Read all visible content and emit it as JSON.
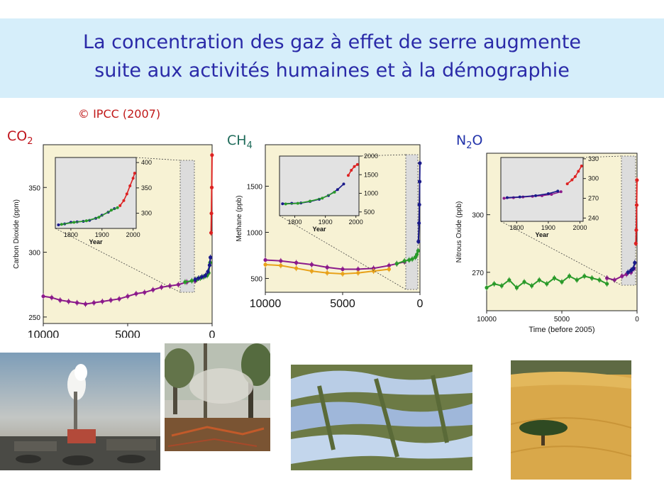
{
  "header": {
    "title_line1": "La concentration des gaz à effet de serre augmente",
    "title_line2": "suite aux activités humaines et à la démographie"
  },
  "credit": "© IPCC (2007)",
  "gas_labels": [
    {
      "main": "CO",
      "sub": "2",
      "tail": "",
      "color": "#c0161e"
    },
    {
      "main": "CH",
      "sub": "4",
      "tail": "",
      "color": "#1f6b5a"
    },
    {
      "main": "N",
      "sub": "2",
      "tail": "O",
      "color": "#2233aa"
    }
  ],
  "chart_data": [
    {
      "type": "scatter",
      "gas": "CO2",
      "ylabel": "Carbon Dioxide (ppm)",
      "xlabel": "",
      "xlim": [
        10000,
        0
      ],
      "ylim": [
        245,
        383
      ],
      "xticks": [
        10000,
        5000,
        0
      ],
      "yticks": [
        250,
        300,
        350
      ],
      "grid": false,
      "series": [
        {
          "color": "#8b1a8b",
          "points": [
            [
              10000,
              266
            ],
            [
              9500,
              265
            ],
            [
              9000,
              263
            ],
            [
              8500,
              262
            ],
            [
              8000,
              261
            ],
            [
              7500,
              260
            ],
            [
              7000,
              261
            ],
            [
              6500,
              262
            ],
            [
              6000,
              263
            ],
            [
              5500,
              264
            ],
            [
              5000,
              266
            ],
            [
              4500,
              268
            ],
            [
              4000,
              269
            ],
            [
              3500,
              271
            ],
            [
              3000,
              273
            ],
            [
              2500,
              274
            ],
            [
              2000,
              275
            ],
            [
              1500,
              277
            ],
            [
              1000,
              278
            ]
          ]
        },
        {
          "color": "#2a9a2a",
          "points": [
            [
              1600,
              277
            ],
            [
              1200,
              278
            ],
            [
              900,
              279
            ],
            [
              700,
              280
            ],
            [
              500,
              281
            ],
            [
              300,
              282
            ],
            [
              200,
              284
            ],
            [
              120,
              292
            ]
          ]
        },
        {
          "color": "#1a1a8a",
          "points": [
            [
              1000,
              279
            ],
            [
              800,
              280
            ],
            [
              600,
              281
            ],
            [
              400,
              282
            ],
            [
              250,
              285
            ],
            [
              150,
              290
            ],
            [
              100,
              296
            ]
          ]
        },
        {
          "color": "#dd2222",
          "points": [
            [
              60,
              315
            ],
            [
              40,
              330
            ],
            [
              20,
              350
            ],
            [
              5,
              375
            ]
          ]
        }
      ],
      "inset": {
        "xlim": [
          1750,
          2010
        ],
        "ylim": [
          270,
          410
        ],
        "xticks": [
          1800,
          1900,
          2000
        ],
        "yticks": [
          300,
          350,
          400
        ],
        "xlabel": "Year",
        "series": [
          {
            "color": "#1a1a8a",
            "points": [
              [
                1760,
                277
              ],
              [
                1780,
                279
              ],
              [
                1800,
                282
              ],
              [
                1820,
                283
              ],
              [
                1840,
                284
              ],
              [
                1860,
                286
              ],
              [
                1880,
                290
              ],
              [
                1900,
                296
              ],
              [
                1920,
                302
              ],
              [
                1940,
                309
              ]
            ]
          },
          {
            "color": "#2a9a2a",
            "points": [
              [
                1770,
                278
              ],
              [
                1810,
                282
              ],
              [
                1850,
                285
              ],
              [
                1890,
                292
              ],
              [
                1930,
                306
              ],
              [
                1950,
                311
              ]
            ]
          },
          {
            "color": "#dd2222",
            "points": [
              [
                1958,
                315
              ],
              [
                1970,
                325
              ],
              [
                1980,
                338
              ],
              [
                1990,
                354
              ],
              [
                2000,
                369
              ],
              [
                2005,
                379
              ]
            ]
          }
        ]
      }
    },
    {
      "type": "scatter",
      "gas": "CH4",
      "ylabel": "Methane (ppb)",
      "xlabel": "",
      "xlim": [
        10000,
        0
      ],
      "ylim": [
        350,
        1950
      ],
      "xticks": [
        10000,
        5000,
        0
      ],
      "yticks": [
        500,
        1000,
        1500
      ],
      "grid": false,
      "series": [
        {
          "color": "#8b1a8b",
          "points": [
            [
              10000,
              700
            ],
            [
              9000,
              690
            ],
            [
              8000,
              670
            ],
            [
              7000,
              650
            ],
            [
              6000,
              620
            ],
            [
              5000,
              600
            ],
            [
              4000,
              600
            ],
            [
              3000,
              610
            ],
            [
              2000,
              640
            ],
            [
              1500,
              660
            ],
            [
              1000,
              680
            ]
          ]
        },
        {
          "color": "#e8a21a",
          "points": [
            [
              10000,
              650
            ],
            [
              9000,
              640
            ],
            [
              8000,
              610
            ],
            [
              7000,
              580
            ],
            [
              6000,
              560
            ],
            [
              5000,
              550
            ],
            [
              4000,
              560
            ],
            [
              3000,
              580
            ],
            [
              2000,
              600
            ]
          ]
        },
        {
          "color": "#2a9a2a",
          "points": [
            [
              1500,
              660
            ],
            [
              1000,
              690
            ],
            [
              700,
              700
            ],
            [
              500,
              710
            ],
            [
              300,
              730
            ],
            [
              200,
              760
            ],
            [
              120,
              800
            ]
          ]
        },
        {
          "color": "#1a1a8a",
          "points": [
            [
              100,
              900
            ],
            [
              60,
              1100
            ],
            [
              40,
              1300
            ],
            [
              20,
              1550
            ],
            [
              5,
              1750
            ]
          ]
        }
      ],
      "inset": {
        "xlim": [
          1750,
          2010
        ],
        "ylim": [
          400,
          2000
        ],
        "xticks": [
          1800,
          1900,
          2000
        ],
        "yticks": [
          500,
          1000,
          1500,
          2000
        ],
        "xlabel": "Year",
        "series": [
          {
            "color": "#1a1a8a",
            "points": [
              [
                1760,
                720
              ],
              [
                1790,
                730
              ],
              [
                1820,
                740
              ],
              [
                1850,
                780
              ],
              [
                1880,
                840
              ],
              [
                1910,
                940
              ],
              [
                1940,
                1100
              ],
              [
                1960,
                1250
              ]
            ]
          },
          {
            "color": "#2a9a2a",
            "points": [
              [
                1770,
                715
              ],
              [
                1810,
                730
              ],
              [
                1850,
                790
              ],
              [
                1890,
                870
              ],
              [
                1930,
                1030
              ]
            ]
          },
          {
            "color": "#dd2222",
            "points": [
              [
                1975,
                1480
              ],
              [
                1985,
                1620
              ],
              [
                1995,
                1720
              ],
              [
                2005,
                1774
              ]
            ]
          }
        ]
      }
    },
    {
      "type": "scatter",
      "gas": "N2O",
      "ylabel": "Nitrous Oxide (ppb)",
      "xlabel": "Time (before 2005)",
      "xlim": [
        10000,
        0
      ],
      "ylim": [
        250,
        332
      ],
      "xticks": [
        10000,
        5000,
        0
      ],
      "yticks": [
        270,
        300
      ],
      "grid": false,
      "series": [
        {
          "color": "#2a9a2a",
          "points": [
            [
              10000,
              262
            ],
            [
              9500,
              264
            ],
            [
              9000,
              263
            ],
            [
              8500,
              266
            ],
            [
              8000,
              262
            ],
            [
              7500,
              265
            ],
            [
              7000,
              263
            ],
            [
              6500,
              266
            ],
            [
              6000,
              264
            ],
            [
              5500,
              267
            ],
            [
              5000,
              265
            ],
            [
              4500,
              268
            ],
            [
              4000,
              266
            ],
            [
              3500,
              268
            ],
            [
              3000,
              267
            ],
            [
              2500,
              266
            ],
            [
              2000,
              264
            ]
          ]
        },
        {
          "color": "#8b1a8b",
          "points": [
            [
              2000,
              267
            ],
            [
              1500,
              266
            ],
            [
              1000,
              268
            ],
            [
              700,
              269
            ],
            [
              400,
              270
            ],
            [
              200,
              272
            ]
          ]
        },
        {
          "color": "#1a1a8a",
          "points": [
            [
              600,
              270
            ],
            [
              400,
              271
            ],
            [
              250,
              272
            ],
            [
              150,
              275
            ]
          ]
        },
        {
          "color": "#dd2222",
          "points": [
            [
              80,
              285
            ],
            [
              50,
              292
            ],
            [
              25,
              305
            ],
            [
              5,
              318
            ]
          ]
        }
      ],
      "inset": {
        "xlim": [
          1750,
          2010
        ],
        "ylim": [
          235,
          332
        ],
        "xticks": [
          1800,
          1900,
          2000
        ],
        "yticks": [
          240,
          270,
          300,
          330
        ],
        "xlabel": "Year",
        "series": [
          {
            "color": "#8b1a8b",
            "points": [
              [
                1760,
                270
              ],
              [
                1790,
                271
              ],
              [
                1820,
                272
              ],
              [
                1850,
                273
              ],
              [
                1880,
                274
              ],
              [
                1910,
                276
              ],
              [
                1940,
                280
              ]
            ]
          },
          {
            "color": "#1a1a8a",
            "points": [
              [
                1770,
                271
              ],
              [
                1810,
                272
              ],
              [
                1860,
                274
              ],
              [
                1900,
                277
              ],
              [
                1930,
                281
              ]
            ]
          },
          {
            "color": "#dd2222",
            "points": [
              [
                1960,
                292
              ],
              [
                1975,
                298
              ],
              [
                1985,
                303
              ],
              [
                1995,
                311
              ],
              [
                2005,
                319
              ]
            ]
          }
        ]
      }
    }
  ],
  "photos": [
    {
      "subject": "factory-smoke-photo"
    },
    {
      "subject": "forest-fire-photo"
    },
    {
      "subject": "rice-terraces-photo"
    },
    {
      "subject": "wheat-field-tree-photo"
    }
  ]
}
